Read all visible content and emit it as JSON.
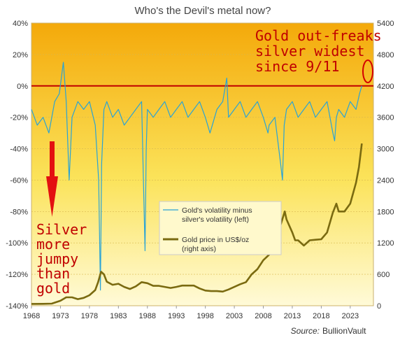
{
  "chart_data": {
    "type": "line",
    "title": "Who's the Devil's metal now?",
    "source_label": "Source:",
    "source_name": "BullionVault",
    "x_ticks": [
      "1968",
      "1973",
      "1978",
      "1983",
      "1988",
      "1993",
      "1998",
      "2003",
      "2008",
      "2013",
      "2018",
      "2023"
    ],
    "xlim": [
      1968,
      2027
    ],
    "left_axis": {
      "ticks": [
        "40%",
        "20%",
        "0%",
        "-20%",
        "-40%",
        "-60%",
        "-80%",
        "-100%",
        "-120%",
        "-140%"
      ],
      "ylim": [
        -140,
        40
      ]
    },
    "right_axis": {
      "ticks": [
        "5400",
        "4800",
        "4200",
        "3600",
        "3000",
        "2400",
        "1800",
        "1200",
        "600",
        "0"
      ],
      "ylim": [
        0,
        5400
      ]
    },
    "legend": {
      "placement": "center",
      "items": [
        {
          "line1": "Gold's volatility minus",
          "line2": "silver's volatility (left)",
          "color": "#29a3d6"
        },
        {
          "line1": "Gold price in US$/oz",
          "line2": "(right axis)",
          "color": "#7a6a10"
        }
      ]
    },
    "annotations": {
      "top_right": [
        "Gold out-freaks",
        "silver widest",
        "since 9/11"
      ],
      "bottom_left": [
        "Silver",
        "more",
        "jumpy",
        "than",
        "gold"
      ]
    },
    "series": [
      {
        "axis": "left",
        "color": "#29a3d6",
        "x": [
          1968.0,
          1969.0,
          1970.0,
          1971.0,
          1972.0,
          1972.8,
          1973.5,
          1974.0,
          1974.5,
          1975.0,
          1976.0,
          1977.0,
          1978.0,
          1979.0,
          1979.6,
          1979.9,
          1980.1,
          1980.5,
          1981.0,
          1982.0,
          1983.0,
          1984.0,
          1985.0,
          1986.0,
          1987.0,
          1987.6,
          1987.8,
          1988.0,
          1989.0,
          1990.0,
          1991.0,
          1992.0,
          1993.0,
          1994.0,
          1995.0,
          1996.0,
          1997.0,
          1998.0,
          1998.8,
          1999.2,
          2000.0,
          2001.0,
          2001.7,
          2002.0,
          2003.0,
          2004.0,
          2005.0,
          2006.0,
          2007.0,
          2008.0,
          2008.8,
          2009.0,
          2010.0,
          2011.0,
          2011.3,
          2011.6,
          2012.0,
          2013.0,
          2014.0,
          2015.0,
          2016.0,
          2017.0,
          2018.0,
          2019.0,
          2020.0,
          2020.3,
          2020.6,
          2021.0,
          2022.0,
          2023.0,
          2024.0,
          2024.6,
          2025.0
        ],
        "values": [
          -15,
          -25,
          -20,
          -30,
          -10,
          -5,
          15,
          -10,
          -60,
          -20,
          -10,
          -15,
          -10,
          -25,
          -60,
          -130,
          -50,
          -15,
          -10,
          -20,
          -15,
          -25,
          -20,
          -15,
          -10,
          -105,
          -40,
          -15,
          -20,
          -15,
          -10,
          -20,
          -15,
          -10,
          -20,
          -15,
          -10,
          -20,
          -30,
          -25,
          -15,
          -10,
          5,
          -20,
          -15,
          -10,
          -20,
          -15,
          -10,
          -20,
          -30,
          -25,
          -20,
          -50,
          -60,
          -25,
          -15,
          -10,
          -20,
          -15,
          -10,
          -20,
          -15,
          -10,
          -30,
          -35,
          -20,
          -15,
          -20,
          -10,
          -15,
          -5,
          0
        ]
      },
      {
        "axis": "right",
        "color": "#7a6a10",
        "x": [
          1968.0,
          1970.0,
          1971.5,
          1973.0,
          1974.0,
          1975.0,
          1976.0,
          1977.0,
          1978.0,
          1979.0,
          1979.5,
          1980.0,
          1980.5,
          1981.0,
          1982.0,
          1983.0,
          1984.0,
          1985.0,
          1986.0,
          1987.0,
          1988.0,
          1989.0,
          1990.0,
          1991.0,
          1992.0,
          1993.0,
          1994.0,
          1995.0,
          1996.0,
          1997.0,
          1998.0,
          1999.0,
          2000.0,
          2001.0,
          2002.0,
          2003.0,
          2004.0,
          2005.0,
          2006.0,
          2007.0,
          2008.0,
          2009.0,
          2010.0,
          2011.0,
          2011.7,
          2012.0,
          2013.0,
          2013.5,
          2014.0,
          2015.0,
          2016.0,
          2017.0,
          2018.0,
          2019.0,
          2020.0,
          2020.6,
          2021.0,
          2022.0,
          2023.0,
          2024.0,
          2024.5,
          2025.0
        ],
        "values": [
          35,
          36,
          40,
          95,
          160,
          160,
          125,
          150,
          200,
          300,
          450,
          650,
          600,
          460,
          400,
          420,
          360,
          320,
          370,
          450,
          430,
          380,
          380,
          360,
          340,
          360,
          385,
          385,
          385,
          330,
          290,
          280,
          280,
          270,
          310,
          360,
          410,
          450,
          600,
          700,
          870,
          975,
          1225,
          1550,
          1800,
          1650,
          1400,
          1250,
          1250,
          1150,
          1250,
          1260,
          1270,
          1400,
          1780,
          1950,
          1800,
          1800,
          1950,
          2350,
          2650,
          3100
        ]
      }
    ]
  }
}
